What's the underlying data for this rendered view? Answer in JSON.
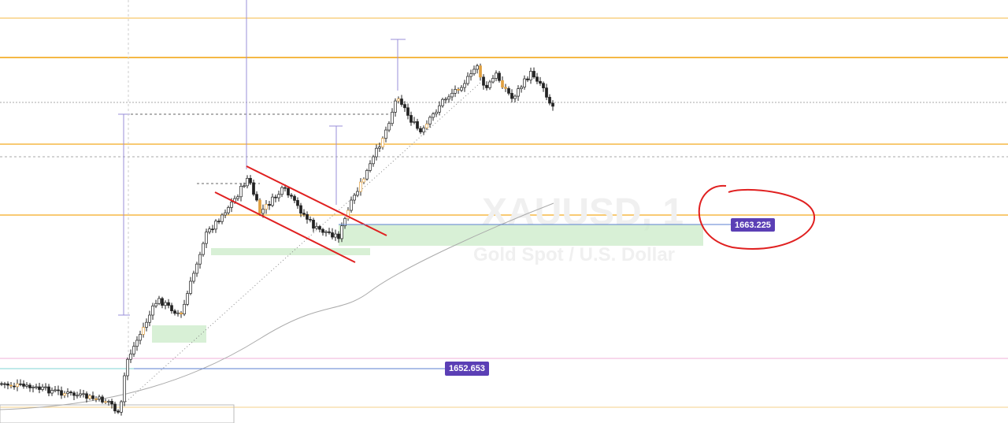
{
  "watermark": {
    "symbol": "XAUUSD, 1",
    "description": "Gold Spot / U.S. Dollar"
  },
  "price_labels": [
    1663.225,
    1652.653
  ]
}
